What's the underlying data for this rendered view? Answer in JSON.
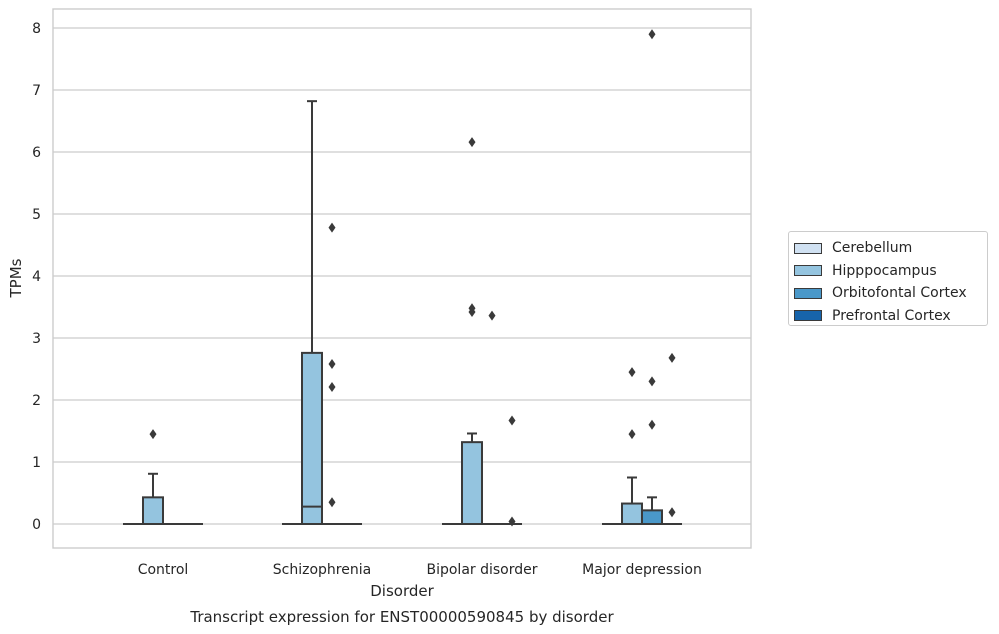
{
  "chart_data": {
    "type": "box",
    "title": "Transcript expression for ENST00000590845 by disorder",
    "xlabel": "Disorder",
    "ylabel": "TPMs",
    "ylim": [
      -0.4,
      8.3
    ],
    "yticks": [
      0,
      1,
      2,
      3,
      4,
      5,
      6,
      7,
      8
    ],
    "grid": true,
    "legend_position": "right",
    "categories": [
      "Control",
      "Schizophrenia",
      "Bipolar disorder",
      "Major depression"
    ],
    "series": [
      {
        "name": "Cerebellum",
        "color": "#d0e1f2",
        "boxes": [
          {
            "category": "Control",
            "min": 0,
            "q1": 0,
            "median": 0,
            "q3": 0,
            "max": 0,
            "outliers": []
          },
          {
            "category": "Schizophrenia",
            "min": 0,
            "q1": 0,
            "median": 0,
            "q3": 0,
            "max": 0,
            "outliers": []
          },
          {
            "category": "Bipolar disorder",
            "min": 0,
            "q1": 0,
            "median": 0,
            "q3": 0,
            "max": 0,
            "outliers": []
          },
          {
            "category": "Major depression",
            "min": 0,
            "q1": 0,
            "median": 0,
            "q3": 0,
            "max": 0,
            "outliers": []
          }
        ]
      },
      {
        "name": "Hipppocampus",
        "color": "#94c4df",
        "boxes": [
          {
            "category": "Control",
            "min": 0,
            "q1": 0,
            "median": 0,
            "q3": 0.43,
            "max": 0.81,
            "outliers": [
              1.45
            ]
          },
          {
            "category": "Schizophrenia",
            "min": 0,
            "q1": 0,
            "median": 0.28,
            "q3": 2.76,
            "max": 6.82,
            "outliers": []
          },
          {
            "category": "Bipolar disorder",
            "min": 0,
            "q1": 0,
            "median": 0,
            "q3": 1.32,
            "max": 1.46,
            "outliers": [
              3.42,
              3.48,
              6.16
            ]
          },
          {
            "category": "Major depression",
            "min": 0,
            "q1": 0,
            "median": 0,
            "q3": 0.33,
            "max": 0.75,
            "outliers": [
              1.45,
              2.45
            ]
          }
        ]
      },
      {
        "name": "Orbitofontal Cortex",
        "color": "#4a98c9",
        "boxes": [
          {
            "category": "Control",
            "min": 0,
            "q1": 0,
            "median": 0,
            "q3": 0,
            "max": 0,
            "outliers": []
          },
          {
            "category": "Schizophrenia",
            "min": 0,
            "q1": 0,
            "median": 0,
            "q3": 0,
            "max": 0,
            "outliers": [
              0.35,
              2.21,
              2.58,
              4.78
            ]
          },
          {
            "category": "Bipolar disorder",
            "min": 0,
            "q1": 0,
            "median": 0,
            "q3": 0,
            "max": 0,
            "outliers": [
              3.36
            ]
          },
          {
            "category": "Major depression",
            "min": 0,
            "q1": 0,
            "median": 0,
            "q3": 0.22,
            "max": 0.43,
            "outliers": [
              1.6,
              2.3,
              7.9
            ]
          }
        ]
      },
      {
        "name": "Prefrontal Cortex",
        "color": "#1764ab",
        "boxes": [
          {
            "category": "Control",
            "min": 0,
            "q1": 0,
            "median": 0,
            "q3": 0,
            "max": 0,
            "outliers": []
          },
          {
            "category": "Schizophrenia",
            "min": 0,
            "q1": 0,
            "median": 0,
            "q3": 0,
            "max": 0,
            "outliers": []
          },
          {
            "category": "Bipolar disorder",
            "min": 0,
            "q1": 0,
            "median": 0,
            "q3": 0,
            "max": 0,
            "outliers": [
              1.67,
              0.04
            ]
          },
          {
            "category": "Major depression",
            "min": 0,
            "q1": 0,
            "median": 0,
            "q3": 0,
            "max": 0,
            "outliers": [
              0.19,
              2.68
            ]
          }
        ]
      }
    ]
  },
  "colors": {
    "grid": "#cccccc",
    "frame": "#cccccc",
    "stroke": "#3a3a3a",
    "text": "#262626",
    "legend_swatches": [
      "#d0e1f2",
      "#94c4df",
      "#4a98c9",
      "#1764ab"
    ]
  }
}
